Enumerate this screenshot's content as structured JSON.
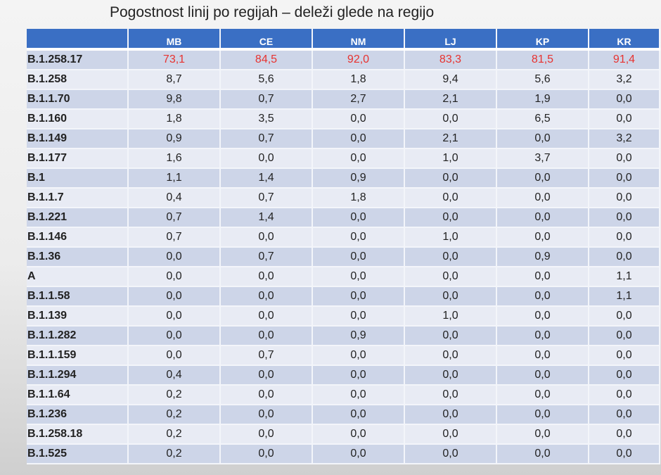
{
  "title": "Pogostnost linij po regijah – deleži glede na regijo",
  "colors": {
    "header_bg": "#3a6fc4",
    "highlight_text": "#e8322f",
    "row_odd": "#cdd5e8",
    "row_even": "#e8ebf4"
  },
  "table": {
    "columns": [
      "",
      "MB",
      "CE",
      "NM",
      "LJ",
      "KP",
      "KR"
    ],
    "rows": [
      {
        "lineage": "B.1.258.17",
        "values": [
          "73,1",
          "84,5",
          "92,0",
          "83,3",
          "81,5",
          "91,4"
        ],
        "highlight": true
      },
      {
        "lineage": "B.1.258",
        "values": [
          "8,7",
          "5,6",
          "1,8",
          "9,4",
          "5,6",
          "3,2"
        ]
      },
      {
        "lineage": "B.1.1.70",
        "values": [
          "9,8",
          "0,7",
          "2,7",
          "2,1",
          "1,9",
          "0,0"
        ]
      },
      {
        "lineage": "B.1.160",
        "values": [
          "1,8",
          "3,5",
          "0,0",
          "0,0",
          "6,5",
          "0,0"
        ]
      },
      {
        "lineage": "B.1.149",
        "values": [
          "0,9",
          "0,7",
          "0,0",
          "2,1",
          "0,0",
          "3,2"
        ]
      },
      {
        "lineage": "B.1.177",
        "values": [
          "1,6",
          "0,0",
          "0,0",
          "1,0",
          "3,7",
          "0,0"
        ]
      },
      {
        "lineage": "B.1",
        "values": [
          "1,1",
          "1,4",
          "0,9",
          "0,0",
          "0,0",
          "0,0"
        ]
      },
      {
        "lineage": "B.1.1.7",
        "values": [
          "0,4",
          "0,7",
          "1,8",
          "0,0",
          "0,0",
          "0,0"
        ]
      },
      {
        "lineage": "B.1.221",
        "values": [
          "0,7",
          "1,4",
          "0,0",
          "0,0",
          "0,0",
          "0,0"
        ]
      },
      {
        "lineage": "B.1.146",
        "values": [
          "0,7",
          "0,0",
          "0,0",
          "1,0",
          "0,0",
          "0,0"
        ]
      },
      {
        "lineage": "B.1.36",
        "values": [
          "0,0",
          "0,7",
          "0,0",
          "0,0",
          "0,9",
          "0,0"
        ]
      },
      {
        "lineage": "A",
        "values": [
          "0,0",
          "0,0",
          "0,0",
          "0,0",
          "0,0",
          "1,1"
        ]
      },
      {
        "lineage": "B.1.1.58",
        "values": [
          "0,0",
          "0,0",
          "0,0",
          "0,0",
          "0,0",
          "1,1"
        ]
      },
      {
        "lineage": "B.1.139",
        "values": [
          "0,0",
          "0,0",
          "0,0",
          "1,0",
          "0,0",
          "0,0"
        ]
      },
      {
        "lineage": "B.1.1.282",
        "values": [
          "0,0",
          "0,0",
          "0,9",
          "0,0",
          "0,0",
          "0,0"
        ]
      },
      {
        "lineage": "B.1.1.159",
        "values": [
          "0,0",
          "0,7",
          "0,0",
          "0,0",
          "0,0",
          "0,0"
        ]
      },
      {
        "lineage": "B.1.1.294",
        "values": [
          "0,4",
          "0,0",
          "0,0",
          "0,0",
          "0,0",
          "0,0"
        ]
      },
      {
        "lineage": "B.1.1.64",
        "values": [
          "0,2",
          "0,0",
          "0,0",
          "0,0",
          "0,0",
          "0,0"
        ]
      },
      {
        "lineage": "B.1.236",
        "values": [
          "0,2",
          "0,0",
          "0,0",
          "0,0",
          "0,0",
          "0,0"
        ]
      },
      {
        "lineage": "B.1.258.18",
        "values": [
          "0,2",
          "0,0",
          "0,0",
          "0,0",
          "0,0",
          "0,0"
        ]
      },
      {
        "lineage": "B.1.525",
        "values": [
          "0,2",
          "0,0",
          "0,0",
          "0,0",
          "0,0",
          "0,0"
        ]
      }
    ]
  }
}
